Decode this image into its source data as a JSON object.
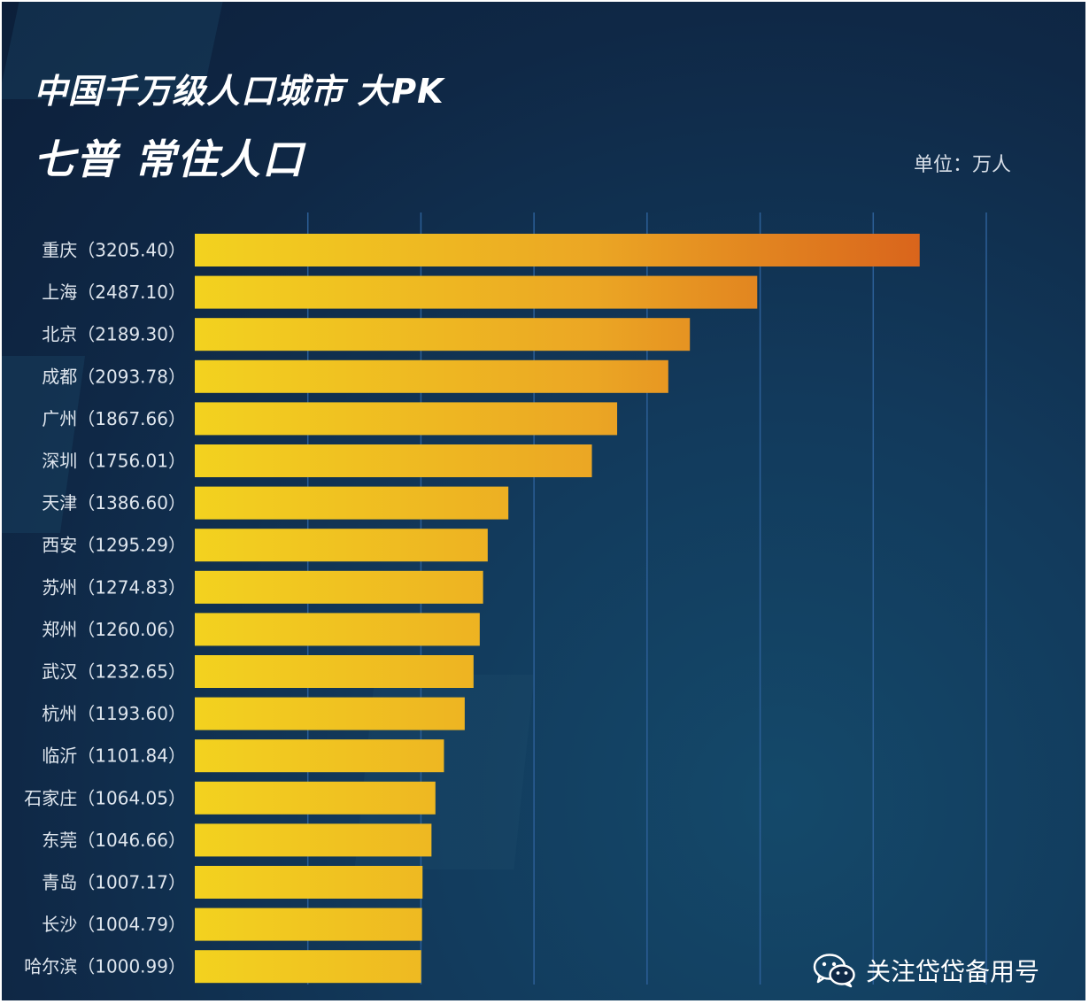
{
  "header": {
    "title": "中国千万级人口城市 大PK",
    "subtitle": "七普 常住人口",
    "unit": "单位：万人"
  },
  "footer": {
    "text": "关注岱岱备用号",
    "icon": "wechat-icon"
  },
  "colors": {
    "bar_start": "#f3d21f",
    "bar_mid": "#eba624",
    "bar_end": "#d9641c",
    "grid": "#2c5f97"
  },
  "chart_data": {
    "type": "bar",
    "orientation": "horizontal",
    "title": "中国千万级人口城市 大PK",
    "subtitle": "七普 常住人口",
    "unit": "单位：万人",
    "categories": [
      "重庆",
      "上海",
      "北京",
      "成都",
      "广州",
      "深圳",
      "天津",
      "西安",
      "苏州",
      "郑州",
      "武汉",
      "杭州",
      "临沂",
      "石家庄",
      "东莞",
      "青岛",
      "长沙",
      "哈尔滨"
    ],
    "labels": [
      "重庆（3205.40）",
      "上海（2487.10）",
      "北京（2189.30）",
      "成都（2093.78）",
      "广州（1867.66）",
      "深圳（1756.01）",
      "天津（1386.60）",
      "西安（1295.29）",
      "苏州（1274.83）",
      "郑州（1260.06）",
      "武汉（1232.65）",
      "杭州（1193.60）",
      "临沂（1101.84）",
      "石家庄（1064.05）",
      "东莞（1046.66）",
      "青岛（1007.17）",
      "长沙（1004.79）",
      "哈尔滨（1000.99）"
    ],
    "values": [
      3205.4,
      2487.1,
      2189.3,
      2093.78,
      1867.66,
      1756.01,
      1386.6,
      1295.29,
      1274.83,
      1260.06,
      1232.65,
      1193.6,
      1101.84,
      1064.05,
      1046.66,
      1007.17,
      1004.79,
      1000.99
    ],
    "xlim": [
      0,
      3500
    ],
    "grid_step": 500,
    "grid": true
  }
}
